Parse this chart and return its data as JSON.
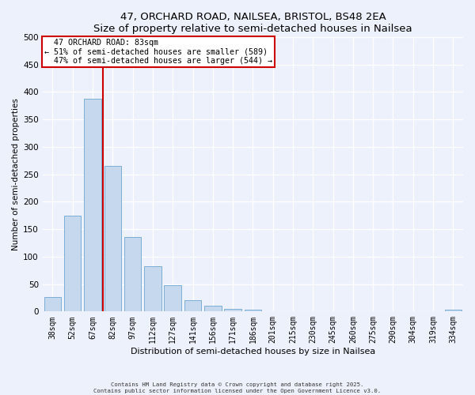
{
  "title": "47, ORCHARD ROAD, NAILSEA, BRISTOL, BS48 2EA",
  "subtitle": "Size of property relative to semi-detached houses in Nailsea",
  "xlabel": "Distribution of semi-detached houses by size in Nailsea",
  "ylabel": "Number of semi-detached properties",
  "bar_labels": [
    "38sqm",
    "52sqm",
    "67sqm",
    "82sqm",
    "97sqm",
    "112sqm",
    "127sqm",
    "141sqm",
    "156sqm",
    "171sqm",
    "186sqm",
    "201sqm",
    "215sqm",
    "230sqm",
    "245sqm",
    "260sqm",
    "275sqm",
    "290sqm",
    "304sqm",
    "319sqm",
    "334sqm"
  ],
  "bar_values": [
    27,
    175,
    387,
    265,
    136,
    82,
    48,
    21,
    11,
    5,
    4,
    0,
    0,
    0,
    0,
    0,
    0,
    0,
    0,
    0,
    3
  ],
  "bar_color": "#c5d8ee",
  "bar_edge_color": "#7bafd4",
  "vline_x_index": 2,
  "vline_color": "#cc0000",
  "annotation_title": "47 ORCHARD ROAD: 83sqm",
  "annotation_line1": "← 51% of semi-detached houses are smaller (589)",
  "annotation_line2": "47% of semi-detached houses are larger (544) →",
  "annotation_box_color": "#ffffff",
  "annotation_box_edgecolor": "#cc0000",
  "ylim": [
    0,
    500
  ],
  "yticks": [
    0,
    50,
    100,
    150,
    200,
    250,
    300,
    350,
    400,
    450,
    500
  ],
  "footer_line1": "Contains HM Land Registry data © Crown copyright and database right 2025.",
  "footer_line2": "Contains public sector information licensed under the Open Government Licence v3.0.",
  "bg_color": "#edf1fb",
  "grid_color": "#ffffff"
}
